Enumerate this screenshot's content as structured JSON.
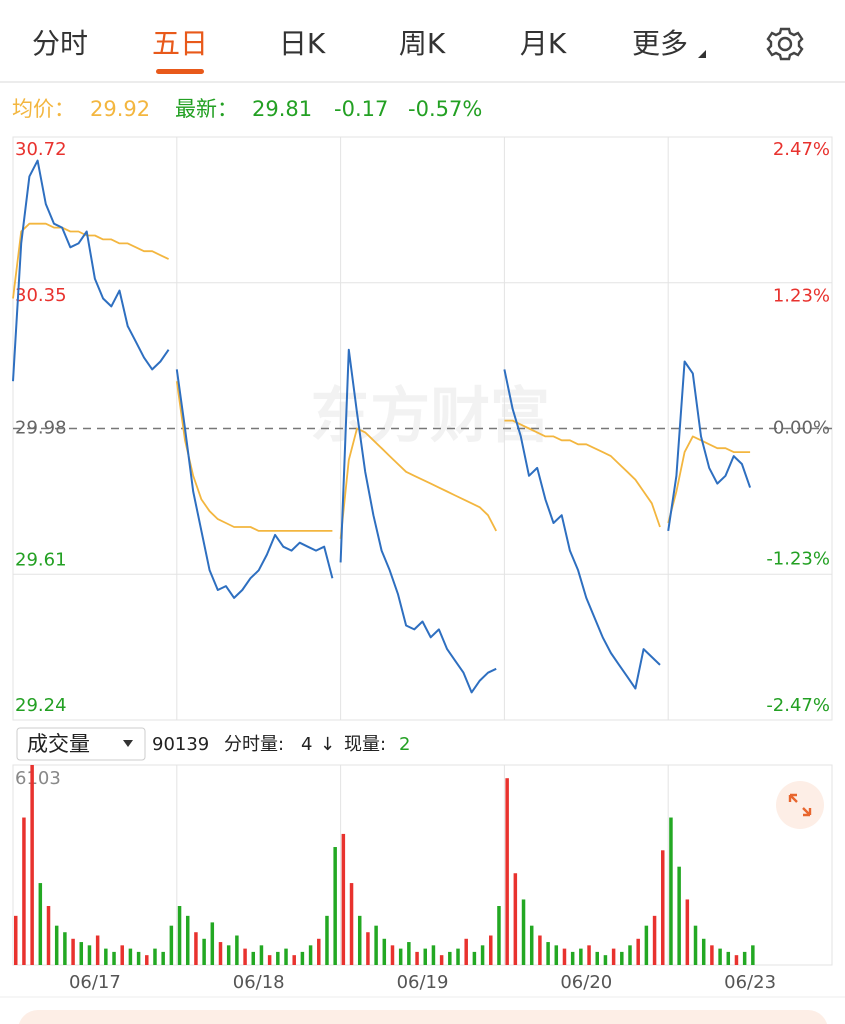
{
  "tabs": [
    "分时",
    "五日",
    "日K",
    "周K",
    "月K",
    "更多"
  ],
  "active_tab": 1,
  "info": {
    "avg_label": "均价：",
    "avg": 29.92,
    "latest_label": "最新：",
    "latest": 29.81,
    "change": -0.17,
    "change_pct": "-0.57%"
  },
  "watermark": "东方财富",
  "volume_bar": {
    "selector": "成交量",
    "total": 90139,
    "minute_label": "分时量:",
    "minute": 4,
    "direction": "↓",
    "current_label": "现量:",
    "current": 2
  },
  "chart_data": [
    {
      "type": "line",
      "ylim": [
        29.24,
        30.72
      ],
      "yticks": [
        29.24,
        29.61,
        29.98,
        30.35,
        30.72
      ],
      "y2lim": [
        -2.47,
        2.47
      ],
      "y2ticks": [
        {
          "value": -2.47,
          "label": "-2.47%"
        },
        {
          "value": -1.23,
          "label": "-1.23%"
        },
        {
          "value": 0,
          "label": "0.00%"
        },
        {
          "value": 1.23,
          "label": "1.23%"
        },
        {
          "value": 2.47,
          "label": "2.47%"
        }
      ],
      "grid": true,
      "colors": {
        "price": "#2e6fc0",
        "avg": "#f3b63f",
        "up": "#e8322e",
        "down": "#23a023",
        "flat": "#666666"
      },
      "days": [
        {
          "price": [
            30.1,
            30.45,
            30.62,
            30.66,
            30.55,
            30.5,
            30.49,
            30.44,
            30.45,
            30.48,
            30.36,
            30.31,
            30.29,
            30.33,
            30.24,
            30.2,
            30.16,
            30.13,
            30.15,
            30.18
          ],
          "avg": [
            30.31,
            30.48,
            30.5,
            30.5,
            30.5,
            30.49,
            30.49,
            30.48,
            30.48,
            30.47,
            30.47,
            30.46,
            30.46,
            30.45,
            30.45,
            30.44,
            30.43,
            30.43,
            30.42,
            30.41
          ]
        },
        {
          "price": [
            30.13,
            29.98,
            29.82,
            29.72,
            29.62,
            29.57,
            29.58,
            29.55,
            29.57,
            29.6,
            29.62,
            29.66,
            29.71,
            29.68,
            29.67,
            29.69,
            29.68,
            29.67,
            29.68,
            29.6
          ],
          "avg": [
            30.1,
            29.95,
            29.86,
            29.8,
            29.77,
            29.75,
            29.74,
            29.73,
            29.73,
            29.73,
            29.72,
            29.72,
            29.72,
            29.72,
            29.72,
            29.72,
            29.72,
            29.72,
            29.72,
            29.72
          ]
        },
        {
          "price": [
            29.64,
            30.18,
            30.02,
            29.87,
            29.76,
            29.67,
            29.62,
            29.56,
            29.48,
            29.47,
            29.49,
            29.45,
            29.47,
            29.42,
            29.39,
            29.36,
            29.31,
            29.34,
            29.36,
            29.37
          ],
          "avg": [
            29.7,
            29.9,
            29.98,
            29.97,
            29.95,
            29.93,
            29.91,
            29.89,
            29.87,
            29.86,
            29.85,
            29.84,
            29.83,
            29.82,
            29.81,
            29.8,
            29.79,
            29.78,
            29.76,
            29.72
          ]
        },
        {
          "price": [
            30.13,
            30.03,
            29.96,
            29.86,
            29.88,
            29.8,
            29.74,
            29.76,
            29.67,
            29.62,
            29.55,
            29.5,
            29.45,
            29.41,
            29.38,
            29.35,
            29.32,
            29.42,
            29.4,
            29.38
          ],
          "avg": [
            30.0,
            30.0,
            29.99,
            29.98,
            29.97,
            29.96,
            29.96,
            29.95,
            29.95,
            29.94,
            29.94,
            29.93,
            29.92,
            29.91,
            29.89,
            29.87,
            29.85,
            29.82,
            29.79,
            29.73
          ]
        },
        {
          "price": [
            29.72,
            29.86,
            30.15,
            30.12,
            29.96,
            29.88,
            29.84,
            29.86,
            29.91,
            29.89,
            29.83
          ],
          "avg": [
            29.74,
            29.82,
            29.92,
            29.96,
            29.95,
            29.94,
            29.93,
            29.93,
            29.92,
            29.92,
            29.92
          ]
        }
      ]
    },
    {
      "type": "bar",
      "categories": [
        "06/17",
        "06/18",
        "06/19",
        "06/20",
        "06/23"
      ],
      "ylim": [
        0,
        6103
      ],
      "yticks": [
        6103
      ],
      "palette": {
        "r": "#e8322e",
        "g": "#23a823"
      },
      "days": [
        {
          "values": [
            1500,
            4500,
            6103,
            2500,
            1800,
            1200,
            1000,
            800,
            700,
            600,
            900,
            500,
            400,
            600,
            500,
            400,
            300,
            500,
            400,
            1200
          ],
          "colors": [
            "r",
            "r",
            "r",
            "g",
            "r",
            "g",
            "g",
            "r",
            "g",
            "g",
            "r",
            "g",
            "g",
            "r",
            "g",
            "g",
            "r",
            "g",
            "g",
            "g"
          ]
        },
        {
          "values": [
            1800,
            1500,
            1000,
            800,
            1300,
            700,
            600,
            900,
            500,
            400,
            600,
            300,
            400,
            500,
            300,
            400,
            600,
            800,
            1500,
            3600
          ],
          "colors": [
            "g",
            "g",
            "r",
            "g",
            "g",
            "r",
            "g",
            "g",
            "r",
            "g",
            "g",
            "r",
            "g",
            "g",
            "r",
            "g",
            "g",
            "r",
            "g",
            "g"
          ]
        },
        {
          "values": [
            4000,
            2500,
            1500,
            1000,
            1200,
            800,
            600,
            500,
            700,
            400,
            500,
            600,
            300,
            400,
            500,
            800,
            400,
            600,
            900,
            1800
          ],
          "colors": [
            "r",
            "r",
            "g",
            "r",
            "g",
            "g",
            "r",
            "g",
            "g",
            "r",
            "g",
            "g",
            "r",
            "g",
            "g",
            "r",
            "g",
            "g",
            "r",
            "g"
          ]
        },
        {
          "values": [
            5700,
            2800,
            2000,
            1200,
            900,
            700,
            600,
            500,
            400,
            500,
            600,
            400,
            300,
            500,
            400,
            600,
            800,
            1200,
            1500,
            3500
          ],
          "colors": [
            "r",
            "r",
            "g",
            "g",
            "r",
            "g",
            "g",
            "r",
            "g",
            "g",
            "r",
            "g",
            "g",
            "r",
            "g",
            "g",
            "r",
            "g",
            "r",
            "r"
          ]
        },
        {
          "values": [
            4500,
            3000,
            2000,
            1200,
            800,
            600,
            500,
            400,
            300,
            400,
            600
          ],
          "colors": [
            "g",
            "g",
            "r",
            "g",
            "g",
            "r",
            "g",
            "g",
            "r",
            "g",
            "g"
          ]
        }
      ]
    }
  ]
}
